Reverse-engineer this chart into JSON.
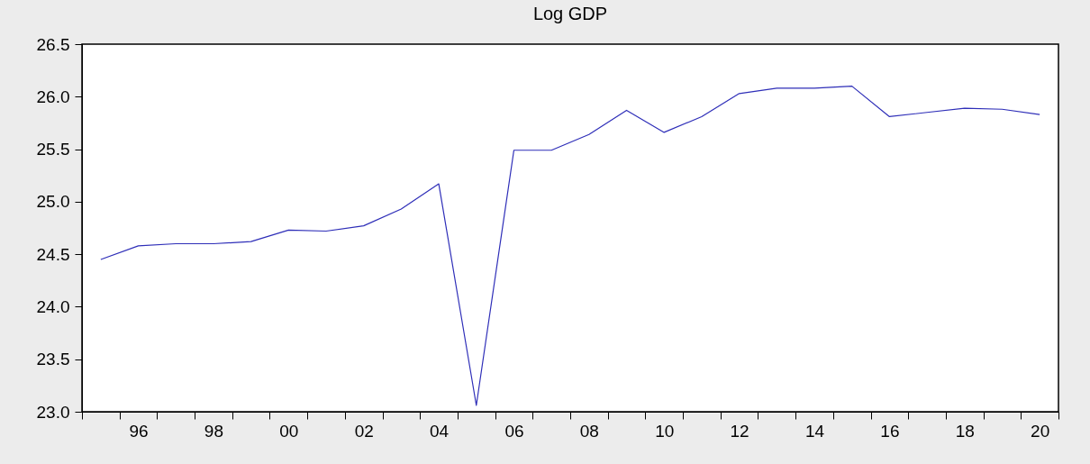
{
  "chart_data": {
    "type": "line",
    "title": "Log GDP",
    "categories": [
      null,
      "96",
      null,
      "98",
      null,
      "00",
      null,
      "02",
      null,
      "04",
      null,
      "06",
      null,
      "08",
      null,
      "10",
      null,
      "12",
      null,
      "14",
      null,
      "16",
      null,
      "18",
      null,
      "20"
    ],
    "series": [
      {
        "color": "#2e2eb8",
        "values": [
          24.45,
          24.58,
          24.6,
          24.6,
          24.62,
          24.73,
          24.72,
          24.77,
          24.93,
          25.17,
          23.06,
          25.49,
          25.49,
          25.64,
          25.87,
          25.66,
          25.81,
          26.03,
          26.08,
          26.08,
          26.1,
          25.81,
          25.85,
          25.89,
          25.88,
          25.83
        ]
      }
    ],
    "ylim": [
      23,
      26.5
    ],
    "yticks": [
      {
        "value": 23,
        "label": "23.0"
      },
      23.5,
      {
        "value": 24,
        "label": "24.0"
      },
      24.5,
      {
        "value": 25,
        "label": "25.0"
      },
      25.5,
      {
        "value": 26,
        "label": "26.0"
      },
      26.5
    ],
    "grid": false,
    "legend": false
  }
}
